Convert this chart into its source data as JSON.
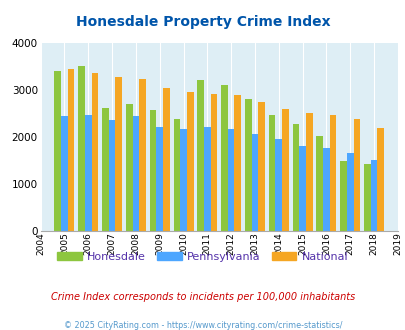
{
  "title": "Honesdale Property Crime Index",
  "years": [
    2004,
    2005,
    2006,
    2007,
    2008,
    2009,
    2010,
    2011,
    2012,
    2013,
    2014,
    2015,
    2016,
    2017,
    2018,
    2019
  ],
  "honesdale": [
    null,
    3400,
    3510,
    2620,
    2700,
    2580,
    2390,
    3220,
    3100,
    2800,
    2470,
    2280,
    2030,
    1480,
    1420,
    null
  ],
  "pennsylvania": [
    null,
    2440,
    2460,
    2370,
    2450,
    2220,
    2160,
    2210,
    2160,
    2060,
    1960,
    1810,
    1770,
    1650,
    1500,
    null
  ],
  "national": [
    null,
    3450,
    3360,
    3270,
    3230,
    3050,
    2955,
    2920,
    2890,
    2740,
    2600,
    2500,
    2460,
    2380,
    2200,
    null
  ],
  "honesdale_color": "#8dc63f",
  "pennsylvania_color": "#4da6ff",
  "national_color": "#f5a623",
  "bg_color": "#deeef5",
  "ylim": [
    0,
    4000
  ],
  "yticks": [
    0,
    1000,
    2000,
    3000,
    4000
  ],
  "subtitle": "Crime Index corresponds to incidents per 100,000 inhabitants",
  "copyright": "© 2025 CityRating.com - https://www.cityrating.com/crime-statistics/",
  "title_color": "#0055aa",
  "subtitle_color": "#cc0000",
  "copyright_color": "#5599cc",
  "legend_labels": [
    "Honesdale",
    "Pennsylvania",
    "National"
  ]
}
